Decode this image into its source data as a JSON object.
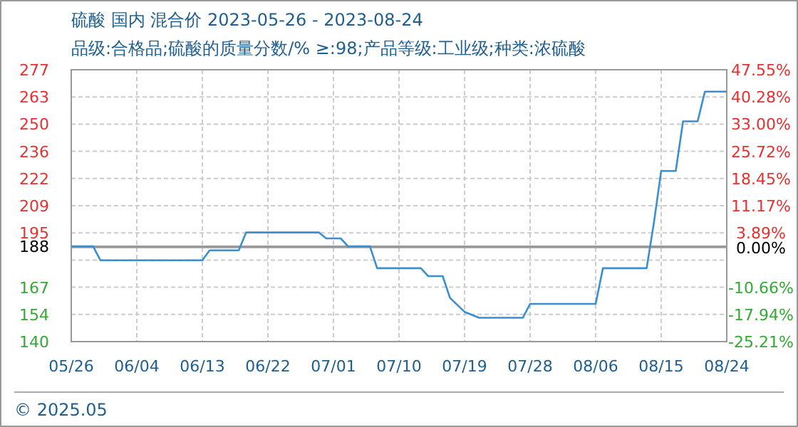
{
  "chart_data": {
    "type": "line",
    "title": "硫酸 国内 混合价 2023-05-26 - 2023-08-24",
    "subtitle": "品级:合格品;硫酸的质量分数/%  ≥:98;产品等级:工业级;种类:浓硫酸",
    "x": [
      "2023-05-26",
      "2023-05-29",
      "2023-05-30",
      "2023-06-13",
      "2023-06-14",
      "2023-06-18",
      "2023-06-19",
      "2023-06-29",
      "2023-06-30",
      "2023-07-02",
      "2023-07-03",
      "2023-07-06",
      "2023-07-07",
      "2023-07-13",
      "2023-07-14",
      "2023-07-16",
      "2023-07-17",
      "2023-07-19",
      "2023-07-21",
      "2023-07-27",
      "2023-07-28",
      "2023-08-06",
      "2023-08-07",
      "2023-08-13",
      "2023-08-14",
      "2023-08-15",
      "2023-08-17",
      "2023-08-18",
      "2023-08-20",
      "2023-08-21",
      "2023-08-24"
    ],
    "series": [
      {
        "color": "#3a8fd0",
        "values": [
          188,
          188,
          181,
          181,
          186,
          186,
          195,
          195,
          192,
          192,
          188,
          188,
          177,
          177,
          173,
          173,
          162,
          155,
          152,
          152,
          159,
          159,
          177,
          177,
          200,
          226,
          226,
          251,
          251,
          266,
          266
        ]
      }
    ],
    "xlim": [
      "2023-05-26",
      "2023-08-24"
    ],
    "xticks": [
      {
        "value": "2023-05-26",
        "label": "05/26"
      },
      {
        "value": "2023-06-04",
        "label": "06/04"
      },
      {
        "value": "2023-06-13",
        "label": "06/13"
      },
      {
        "value": "2023-06-22",
        "label": "06/22"
      },
      {
        "value": "2023-07-01",
        "label": "07/01"
      },
      {
        "value": "2023-07-10",
        "label": "07/10"
      },
      {
        "value": "2023-07-19",
        "label": "07/19"
      },
      {
        "value": "2023-07-28",
        "label": "07/28"
      },
      {
        "value": "2023-08-06",
        "label": "08/06"
      },
      {
        "value": "2023-08-15",
        "label": "08/15"
      },
      {
        "value": "2023-08-24",
        "label": "08/24"
      }
    ],
    "ylim": [
      140,
      277
    ],
    "yticks": [
      {
        "value": 140,
        "label": "140"
      },
      {
        "value": 153.7,
        "label": "154"
      },
      {
        "value": 167.4,
        "label": "167"
      },
      {
        "value": 181.1,
        "label": null
      },
      {
        "value": 194.8,
        "label": "195"
      },
      {
        "value": 208.5,
        "label": "209"
      },
      {
        "value": 222.2,
        "label": "222"
      },
      {
        "value": 235.9,
        "label": "236"
      },
      {
        "value": 249.6,
        "label": "250"
      },
      {
        "value": 263.3,
        "label": "263"
      },
      {
        "value": 277,
        "label": "277"
      }
    ],
    "y2lim": [
      -25.21,
      47.55
    ],
    "y2ticks": [
      {
        "value": -25.21,
        "label": "-25.21%"
      },
      {
        "value": -17.94,
        "label": "-17.94%"
      },
      {
        "value": -10.66,
        "label": "-10.66%"
      },
      {
        "value": -3.38,
        "label": null
      },
      {
        "value": 3.89,
        "label": "3.89%"
      },
      {
        "value": 11.17,
        "label": "11.17%"
      },
      {
        "value": 18.45,
        "label": "18.45%"
      },
      {
        "value": 25.72,
        "label": "25.72%"
      },
      {
        "value": 33.0,
        "label": "33.00%"
      },
      {
        "value": 40.28,
        "label": "40.28%"
      },
      {
        "value": 47.55,
        "label": "47.55%"
      }
    ],
    "ref_lines": [
      {
        "axis": "y",
        "value": 188,
        "label": "188",
        "color": "#999999"
      },
      {
        "axis": "y2",
        "value": 0,
        "label": "0.00%",
        "color": "#999999"
      }
    ],
    "annotations": [
      "© 2025.05"
    ],
    "grid": true,
    "marker": "none",
    "line_style": "solid"
  }
}
